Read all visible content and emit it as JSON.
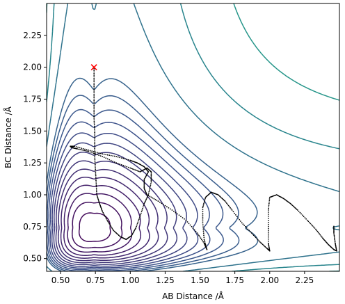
{
  "chart_data": {
    "type": "contour",
    "xlabel": "AB Distance /Å",
    "ylabel": "BC Distance /Å",
    "xlim": [
      0.4,
      2.5
    ],
    "ylim": [
      0.4,
      2.5
    ],
    "x_ticks": [
      0.5,
      0.75,
      1.0,
      1.25,
      1.5,
      1.75,
      2.0,
      2.25
    ],
    "y_ticks": [
      0.5,
      0.75,
      1.0,
      1.25,
      1.5,
      1.75,
      2.0,
      2.25
    ],
    "x_tick_labels": [
      "0.50",
      "0.75",
      "1.00",
      "1.25",
      "1.50",
      "1.75",
      "2.00",
      "2.25"
    ],
    "y_tick_labels": [
      "0.50",
      "0.75",
      "1.00",
      "1.25",
      "1.50",
      "1.75",
      "2.00",
      "2.25"
    ],
    "colormap": "viridis",
    "contour_levels": 25,
    "start_marker": {
      "x": 0.74,
      "y": 2.0,
      "marker": "x",
      "color": "#ff0000"
    },
    "trajectory_color": "#000000",
    "trajectory": [
      [
        0.74,
        2.0
      ],
      [
        0.74,
        1.9
      ],
      [
        0.74,
        1.8
      ],
      [
        0.74,
        1.7
      ],
      [
        0.74,
        1.6
      ],
      [
        0.745,
        1.5
      ],
      [
        0.745,
        1.4
      ],
      [
        0.745,
        1.3
      ],
      [
        0.75,
        1.2
      ],
      [
        0.755,
        1.1
      ],
      [
        0.76,
        1.0
      ],
      [
        0.78,
        0.93
      ],
      [
        0.8,
        0.87
      ],
      [
        0.84,
        0.79
      ],
      [
        0.88,
        0.72
      ],
      [
        0.93,
        0.67
      ],
      [
        0.97,
        0.65
      ],
      [
        1.01,
        0.68
      ],
      [
        1.04,
        0.74
      ],
      [
        1.07,
        0.83
      ],
      [
        1.1,
        0.93
      ],
      [
        1.13,
        1.0
      ],
      [
        1.15,
        1.1
      ],
      [
        1.15,
        1.18
      ],
      [
        1.12,
        1.21
      ],
      [
        1.07,
        1.18
      ],
      [
        1.0,
        1.21
      ],
      [
        0.9,
        1.25
      ],
      [
        0.8,
        1.3
      ],
      [
        0.7,
        1.34
      ],
      [
        0.62,
        1.36
      ],
      [
        0.58,
        1.37
      ],
      [
        0.57,
        1.38
      ],
      [
        0.6,
        1.38
      ],
      [
        0.7,
        1.35
      ],
      [
        0.8,
        1.32
      ],
      [
        0.9,
        1.3
      ],
      [
        1.0,
        1.27
      ],
      [
        1.05,
        1.25
      ],
      [
        1.1,
        1.22
      ],
      [
        1.13,
        1.18
      ],
      [
        1.1,
        1.12
      ],
      [
        1.1,
        1.05
      ],
      [
        1.12,
        1.0
      ],
      [
        1.2,
        0.95
      ],
      [
        1.3,
        0.88
      ],
      [
        1.4,
        0.8
      ],
      [
        1.48,
        0.7
      ],
      [
        1.53,
        0.62
      ],
      [
        1.55,
        0.57
      ],
      [
        1.53,
        0.65
      ],
      [
        1.52,
        0.78
      ],
      [
        1.52,
        0.9
      ],
      [
        1.54,
        0.98
      ],
      [
        1.58,
        1.02
      ],
      [
        1.63,
        1.0
      ],
      [
        1.68,
        0.95
      ],
      [
        1.73,
        0.88
      ],
      [
        1.8,
        0.78
      ],
      [
        1.87,
        0.7
      ],
      [
        1.93,
        0.63
      ],
      [
        1.98,
        0.58
      ],
      [
        2.0,
        0.56
      ],
      [
        1.99,
        0.62
      ],
      [
        1.99,
        0.75
      ],
      [
        1.99,
        0.88
      ],
      [
        2.0,
        0.98
      ],
      [
        2.05,
        1.0
      ],
      [
        2.1,
        0.97
      ],
      [
        2.15,
        0.93
      ],
      [
        2.2,
        0.88
      ],
      [
        2.27,
        0.8
      ],
      [
        2.33,
        0.73
      ],
      [
        2.38,
        0.66
      ],
      [
        2.42,
        0.61
      ],
      [
        2.46,
        0.57
      ],
      [
        2.48,
        0.56
      ],
      [
        2.47,
        0.62
      ],
      [
        2.46,
        0.7
      ],
      [
        2.46,
        0.76
      ]
    ]
  }
}
